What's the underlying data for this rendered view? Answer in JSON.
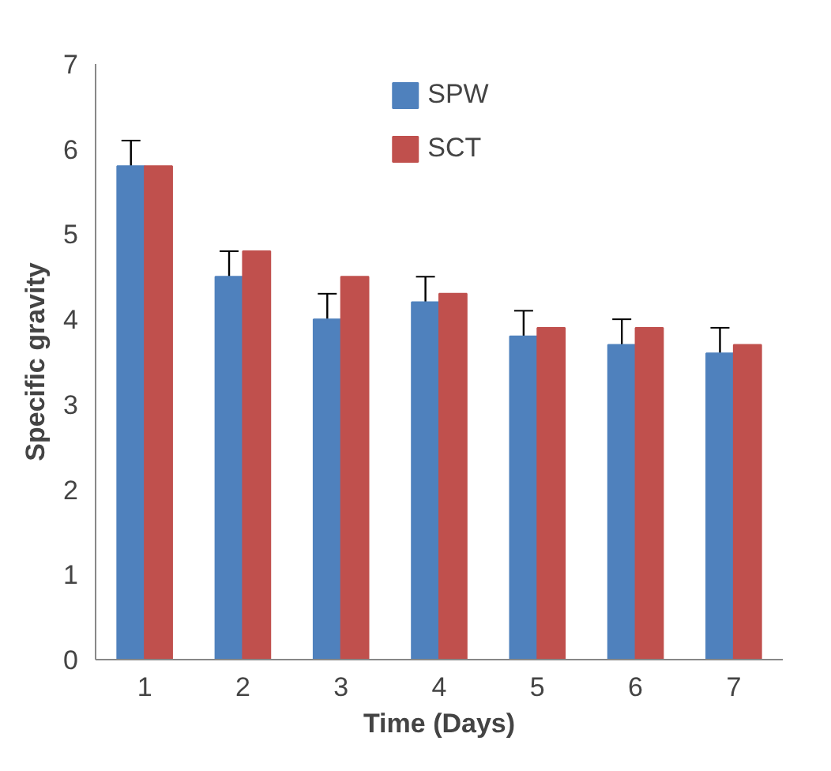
{
  "chart_data": {
    "type": "bar",
    "xlabel": "Time (Days)",
    "ylabel": "Specific gravity",
    "categories": [
      "1",
      "2",
      "3",
      "4",
      "5",
      "6",
      "7"
    ],
    "series": [
      {
        "name": "SPW",
        "color": "#4f81bd",
        "values": [
          5.8,
          4.5,
          4.0,
          4.2,
          3.8,
          3.7,
          3.6
        ],
        "errors": [
          0.3,
          0.3,
          0.3,
          0.3,
          0.3,
          0.3,
          0.3
        ]
      },
      {
        "name": "SCT",
        "color": "#c0504d",
        "values": [
          5.8,
          4.8,
          4.5,
          4.3,
          3.9,
          3.9,
          3.7
        ]
      }
    ],
    "ylim": [
      0,
      7
    ],
    "yticks": [
      0,
      1,
      2,
      3,
      4,
      5,
      6,
      7
    ],
    "grid": false,
    "legend": "top"
  }
}
